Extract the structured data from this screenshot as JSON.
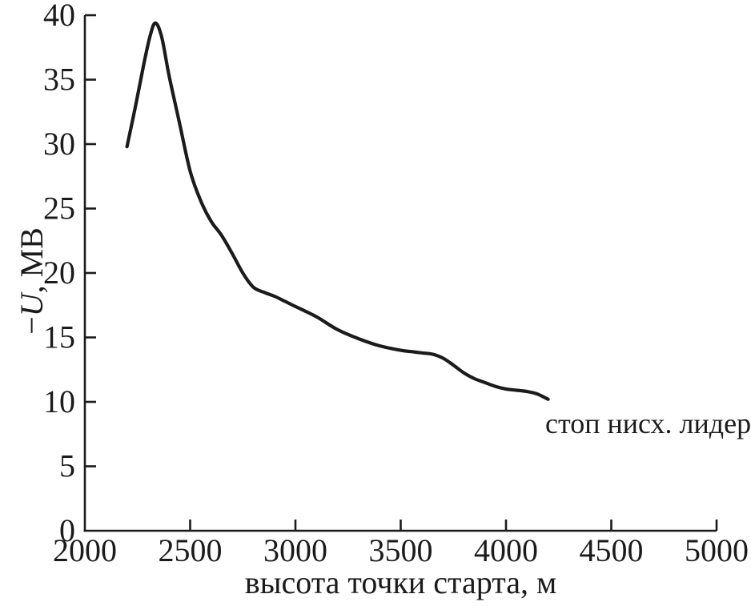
{
  "chart_data": {
    "type": "line",
    "title": "",
    "xlabel": "высота точки старта, м",
    "ylabel": "−U, МВ",
    "ylabel_parts": {
      "sign": "−",
      "symbol": "U",
      "unit": ", МВ"
    },
    "xlim": [
      2000,
      5000
    ],
    "ylim": [
      0,
      40
    ],
    "x_ticks": [
      2000,
      2500,
      3000,
      3500,
      4000,
      4500,
      5000
    ],
    "y_ticks": [
      0,
      5,
      10,
      15,
      20,
      25,
      30,
      35,
      40
    ],
    "grid": false,
    "legend": "none",
    "ink_color": "#1b1b1b",
    "background_color": "#ffffff",
    "annotation": {
      "text": "стоп нисх. лидер",
      "x": 4200,
      "y": 8.3
    },
    "series": [
      {
        "name": "",
        "x": [
          2200,
          2240,
          2280,
          2310,
          2335,
          2365,
          2400,
          2450,
          2500,
          2550,
          2600,
          2650,
          2700,
          2750,
          2800,
          2850,
          2900,
          2950,
          3000,
          3100,
          3200,
          3300,
          3400,
          3500,
          3550,
          3600,
          3650,
          3700,
          3750,
          3800,
          3850,
          3900,
          3950,
          4000,
          4050,
          4100,
          4150,
          4200
        ],
        "y": [
          29.8,
          32.9,
          36.2,
          38.4,
          39.4,
          38.3,
          35.3,
          31.6,
          27.9,
          25.6,
          24.0,
          22.9,
          21.5,
          20.0,
          18.9,
          18.5,
          18.2,
          17.8,
          17.4,
          16.6,
          15.6,
          14.9,
          14.35,
          14.0,
          13.9,
          13.8,
          13.7,
          13.4,
          12.85,
          12.25,
          11.8,
          11.5,
          11.2,
          11.0,
          10.9,
          10.8,
          10.6,
          10.2
        ]
      }
    ]
  }
}
